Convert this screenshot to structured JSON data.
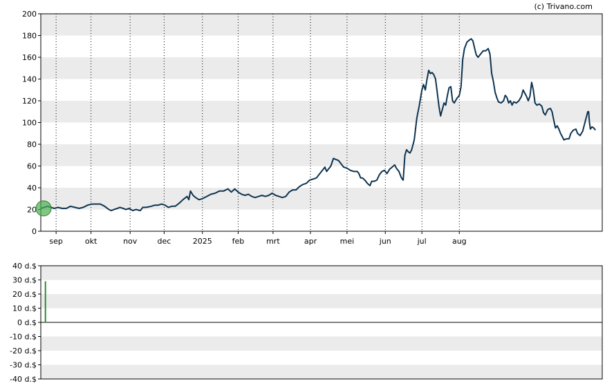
{
  "credit": "(c) Trivano.com",
  "colors": {
    "price_line": "#0d3350",
    "band_fill": "#ebebeb",
    "grid": "#000000",
    "volume_bar": "#2e8b2e",
    "marker_fill": "#4caf50",
    "marker_stroke": "#2e7d32"
  },
  "chart_data": [
    {
      "type": "line",
      "title": "",
      "xlabel": "",
      "ylabel": "",
      "ylim": [
        0,
        200
      ],
      "y_ticks": [
        "0",
        "20",
        "40",
        "60",
        "80",
        "100",
        "120",
        "140",
        "160",
        "180",
        "200"
      ],
      "x_ticks": [
        "sep",
        "okt",
        "nov",
        "dec",
        "2025",
        "feb",
        "mrt",
        "apr",
        "mei",
        "jun",
        "jul",
        "aug"
      ],
      "grid": "vertical dotted at month starts, alternating horizontal bands",
      "series": [
        {
          "points": [
            [
              0,
              21
            ],
            [
              4,
              22
            ],
            [
              8,
              23
            ],
            [
              12,
              22
            ],
            [
              16,
              21
            ],
            [
              20,
              22
            ],
            [
              25,
              21
            ],
            [
              30,
              21
            ],
            [
              35,
              23
            ],
            [
              40,
              22
            ],
            [
              45,
              21
            ],
            [
              50,
              22
            ],
            [
              55,
              24
            ],
            [
              60,
              25
            ],
            [
              65,
              25
            ],
            [
              70,
              25
            ],
            [
              75,
              23
            ],
            [
              80,
              20
            ],
            [
              83,
              19
            ],
            [
              86,
              20
            ],
            [
              90,
              21
            ],
            [
              93,
              22
            ],
            [
              97,
              21
            ],
            [
              100,
              20
            ],
            [
              104,
              21
            ],
            [
              108,
              19
            ],
            [
              112,
              20
            ],
            [
              117,
              19
            ],
            [
              120,
              22
            ],
            [
              124,
              22
            ],
            [
              130,
              23
            ],
            [
              134,
              24
            ],
            [
              138,
              24
            ],
            [
              142,
              25
            ],
            [
              146,
              24
            ],
            [
              150,
              22
            ],
            [
              154,
              23
            ],
            [
              158,
              23
            ],
            [
              163,
              26
            ],
            [
              167,
              29
            ],
            [
              172,
              32
            ],
            [
              174,
              29
            ],
            [
              176,
              37
            ],
            [
              179,
              33
            ],
            [
              182,
              31
            ],
            [
              186,
              29
            ],
            [
              190,
              30
            ],
            [
              195,
              32
            ],
            [
              200,
              34
            ],
            [
              205,
              35
            ],
            [
              210,
              37
            ],
            [
              215,
              37
            ],
            [
              220,
              39
            ],
            [
              224,
              36
            ],
            [
              228,
              39
            ],
            [
              232,
              36
            ],
            [
              236,
              34
            ],
            [
              240,
              33
            ],
            [
              244,
              34
            ],
            [
              248,
              32
            ],
            [
              252,
              31
            ],
            [
              256,
              32
            ],
            [
              260,
              33
            ],
            [
              264,
              32
            ],
            [
              268,
              33
            ],
            [
              272,
              35
            ],
            [
              276,
              33
            ],
            [
              280,
              32
            ],
            [
              284,
              31
            ],
            [
              288,
              32
            ],
            [
              292,
              36
            ],
            [
              296,
              38
            ],
            [
              300,
              38
            ],
            [
              304,
              41
            ],
            [
              308,
              43
            ],
            [
              312,
              44
            ],
            [
              316,
              47
            ],
            [
              320,
              48
            ],
            [
              324,
              49
            ],
            [
              328,
              53
            ],
            [
              332,
              57
            ],
            [
              334,
              59
            ],
            [
              336,
              55
            ],
            [
              338,
              57
            ],
            [
              341,
              60
            ],
            [
              344,
              67
            ],
            [
              347,
              66
            ],
            [
              350,
              65
            ],
            [
              353,
              62
            ],
            [
              356,
              59
            ],
            [
              360,
              58
            ],
            [
              364,
              56
            ],
            [
              368,
              55
            ],
            [
              372,
              55
            ],
            [
              374,
              53
            ],
            [
              376,
              49
            ],
            [
              378,
              49
            ],
            [
              381,
              47
            ],
            [
              384,
              44
            ],
            [
              387,
              42
            ],
            [
              389,
              46
            ],
            [
              392,
              46
            ],
            [
              395,
              47
            ],
            [
              398,
              52
            ],
            [
              401,
              55
            ],
            [
              404,
              56
            ],
            [
              407,
              53
            ],
            [
              410,
              57
            ],
            [
              413,
              59
            ],
            [
              416,
              61
            ],
            [
              418,
              58
            ],
            [
              421,
              55
            ],
            [
              424,
              49
            ],
            [
              426,
              47
            ],
            [
              428,
              70
            ],
            [
              430,
              75
            ],
            [
              432,
              73
            ],
            [
              434,
              72
            ],
            [
              436,
              75
            ],
            [
              439,
              84
            ],
            [
              442,
              104
            ],
            [
              445,
              116
            ],
            [
              448,
              130
            ],
            [
              450,
              135
            ],
            [
              452,
              130
            ],
            [
              454,
              140
            ],
            [
              456,
              148
            ],
            [
              458,
              145
            ],
            [
              460,
              146
            ],
            [
              462,
              144
            ],
            [
              464,
              140
            ],
            [
              466,
              128
            ],
            [
              468,
              115
            ],
            [
              470,
              106
            ],
            [
              472,
              112
            ],
            [
              474,
              118
            ],
            [
              476,
              116
            ],
            [
              478,
              125
            ],
            [
              480,
              132
            ],
            [
              482,
              133
            ],
            [
              484,
              120
            ],
            [
              486,
              118
            ],
            [
              489,
              122
            ],
            [
              492,
              125
            ],
            [
              494,
              133
            ],
            [
              496,
              158
            ],
            [
              498,
              168
            ],
            [
              501,
              174
            ],
            [
              504,
              176
            ],
            [
              506,
              177
            ],
            [
              508,
              175
            ],
            [
              510,
              168
            ],
            [
              512,
              162
            ],
            [
              514,
              160
            ],
            [
              517,
              163
            ],
            [
              520,
              166
            ],
            [
              523,
              166
            ],
            [
              526,
              168
            ],
            [
              528,
              163
            ],
            [
              530,
              145
            ],
            [
              532,
              138
            ],
            [
              534,
              128
            ],
            [
              536,
              123
            ],
            [
              538,
              119
            ],
            [
              541,
              118
            ],
            [
              544,
              120
            ],
            [
              546,
              125
            ],
            [
              548,
              123
            ],
            [
              550,
              118
            ],
            [
              552,
              120
            ],
            [
              554,
              116
            ],
            [
              556,
              119
            ],
            [
              559,
              118
            ],
            [
              562,
              120
            ],
            [
              565,
              124
            ],
            [
              567,
              130
            ],
            [
              569,
              127
            ],
            [
              571,
              124
            ],
            [
              573,
              120
            ],
            [
              575,
              124
            ],
            [
              577,
              137
            ],
            [
              579,
              130
            ],
            [
              581,
              118
            ],
            [
              583,
              116
            ],
            [
              586,
              117
            ],
            [
              589,
              115
            ],
            [
              591,
              109
            ],
            [
              593,
              107
            ],
            [
              596,
              112
            ],
            [
              599,
              113
            ],
            [
              601,
              110
            ],
            [
              603,
              102
            ],
            [
              605,
              95
            ],
            [
              607,
              97
            ],
            [
              609,
              94
            ],
            [
              611,
              90
            ],
            [
              613,
              87
            ],
            [
              615,
              84
            ],
            [
              618,
              85
            ],
            [
              621,
              85
            ],
            [
              623,
              90
            ],
            [
              626,
              93
            ],
            [
              629,
              94
            ],
            [
              631,
              90
            ],
            [
              634,
              88
            ],
            [
              637,
              92
            ],
            [
              640,
              101
            ],
            [
              643,
              110
            ],
            [
              644,
              110
            ],
            [
              645,
              100
            ],
            [
              646,
              94
            ],
            [
              648,
              96
            ],
            [
              650,
              95
            ],
            [
              652,
              93
            ]
          ]
        }
      ]
    },
    {
      "type": "bar",
      "title": "",
      "xlabel": "",
      "ylabel": "",
      "ylim": [
        -40,
        40
      ],
      "y_ticks": [
        "40 d.$",
        "30 d.$",
        "20 d.$",
        "10 d.$",
        "0 d.$",
        "-10 d.$",
        "-20 d.$",
        "-30 d.$",
        "-40 d.$"
      ],
      "series": [
        {
          "points": [
            [
              3,
              29
            ]
          ]
        }
      ]
    }
  ]
}
